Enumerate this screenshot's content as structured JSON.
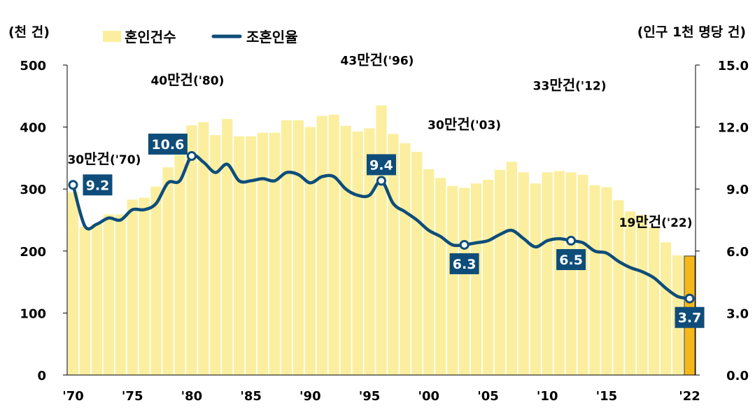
{
  "chart_data": {
    "type": "bar+line",
    "left_axis_unit": "(천 건)",
    "right_axis_unit": "(인구 1천 명당 건)",
    "left_ylim": [
      0,
      500
    ],
    "right_ylim": [
      0,
      15
    ],
    "left_ticks": [
      "0",
      "100",
      "200",
      "300",
      "400",
      "500"
    ],
    "right_ticks": [
      "0.0",
      "3.0",
      "6.0",
      "9.0",
      "12.0",
      "15.0"
    ],
    "x_tick_labels": [
      {
        "year": 1970,
        "label": "'70"
      },
      {
        "year": 1975,
        "label": "'75"
      },
      {
        "year": 1980,
        "label": "'80"
      },
      {
        "year": 1985,
        "label": "'85"
      },
      {
        "year": 1990,
        "label": "'90"
      },
      {
        "year": 1995,
        "label": "'95"
      },
      {
        "year": 2000,
        "label": "'00"
      },
      {
        "year": 2005,
        "label": "'05"
      },
      {
        "year": 2010,
        "label": "'10"
      },
      {
        "year": 2015,
        "label": "'15"
      },
      {
        "year": 2022,
        "label": "'22"
      }
    ],
    "legend": {
      "bar": "혼인건수",
      "line": "조혼인율"
    },
    "years": [
      1970,
      1971,
      1972,
      1973,
      1974,
      1975,
      1976,
      1977,
      1978,
      1979,
      1980,
      1981,
      1982,
      1983,
      1984,
      1985,
      1986,
      1987,
      1988,
      1989,
      1990,
      1991,
      1992,
      1993,
      1994,
      1995,
      1996,
      1997,
      1998,
      1999,
      2000,
      2001,
      2002,
      2003,
      2004,
      2005,
      2006,
      2007,
      2008,
      2009,
      2010,
      2011,
      2012,
      2013,
      2014,
      2015,
      2016,
      2017,
      2018,
      2019,
      2020,
      2021,
      2022
    ],
    "marriages": [
      295,
      239,
      244,
      259,
      259,
      283,
      286,
      304,
      335,
      355,
      403,
      408,
      387,
      413,
      385,
      385,
      391,
      391,
      411,
      411,
      400,
      418,
      420,
      402,
      393,
      398,
      435,
      389,
      374,
      360,
      332,
      318,
      305,
      302,
      309,
      315,
      331,
      344,
      327,
      309,
      327,
      329,
      327,
      323,
      306,
      303,
      282,
      264,
      258,
      239,
      214,
      193,
      192
    ],
    "crude_rate": [
      9.2,
      7.2,
      7.3,
      7.6,
      7.5,
      8.0,
      8.0,
      8.3,
      9.3,
      9.4,
      10.6,
      10.3,
      9.8,
      10.2,
      9.4,
      9.4,
      9.5,
      9.4,
      9.8,
      9.7,
      9.3,
      9.6,
      9.6,
      9.0,
      8.7,
      8.7,
      9.4,
      8.3,
      7.9,
      7.5,
      7.0,
      6.7,
      6.3,
      6.3,
      6.4,
      6.5,
      6.8,
      7.0,
      6.6,
      6.2,
      6.5,
      6.6,
      6.5,
      6.4,
      6.0,
      5.9,
      5.5,
      5.2,
      5.0,
      4.7,
      4.2,
      3.8,
      3.7
    ],
    "bar_color": "#fbef9f",
    "highlight_bar_color": "#f5b81a",
    "line_color": "#0e4d7a",
    "label_box_color": "#0e4d7a",
    "rate_labels": [
      {
        "year": 1970,
        "text": "9.2",
        "pos": "right"
      },
      {
        "year": 1980,
        "text": "10.6",
        "pos": "left-above"
      },
      {
        "year": 1996,
        "text": "9.4",
        "pos": "above"
      },
      {
        "year": 2003,
        "text": "6.3",
        "pos": "below"
      },
      {
        "year": 2012,
        "text": "6.5",
        "pos": "below"
      },
      {
        "year": 2022,
        "text": "3.7",
        "pos": "below"
      }
    ],
    "annotations": [
      {
        "year": 1970,
        "num": "30",
        "text": "만건",
        "suffix": "('70)"
      },
      {
        "year": 1980,
        "num": "40",
        "text": "만건",
        "suffix": "('80)"
      },
      {
        "year": 1996,
        "num": "43",
        "text": "만건",
        "suffix": "('96)"
      },
      {
        "year": 2003,
        "num": "30",
        "text": "만건",
        "suffix": "('03)"
      },
      {
        "year": 2012,
        "num": "33",
        "text": "만건",
        "suffix": "('12)"
      },
      {
        "year": 2022,
        "num": "19",
        "text": "만건",
        "suffix": "('22)"
      }
    ]
  }
}
